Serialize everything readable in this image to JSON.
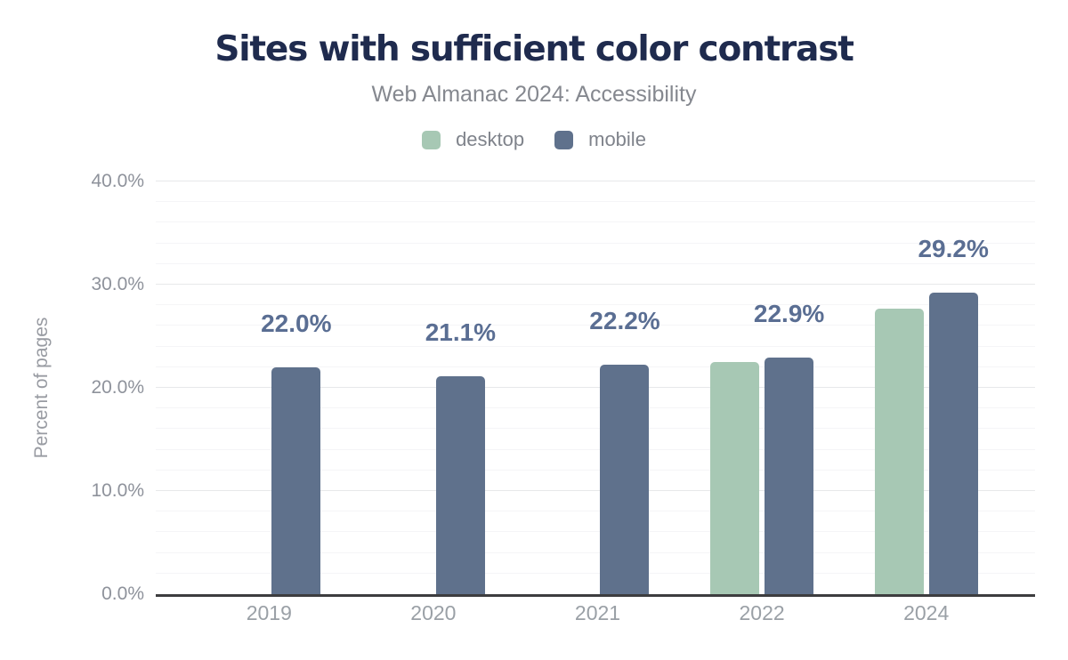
{
  "title": "Sites with sufficient color contrast",
  "subtitle": "Web Almanac 2024: Accessibility",
  "legend": [
    {
      "label": "desktop",
      "color": "#a7c8b4"
    },
    {
      "label": "mobile",
      "color": "#5f718c"
    }
  ],
  "colors": {
    "title": "#1f2b4e",
    "subtitle_text": "#85888f",
    "axis_line": "#3d3d3f",
    "grid_major": "#e7e8ea",
    "grid_minor": "#f5f5f7",
    "tick_text": "#8e929b",
    "data_label": "#5a6e93",
    "desktop_bar": "#a7c8b4",
    "mobile_bar": "#5f718c"
  },
  "chart_data": {
    "type": "bar",
    "categories": [
      "2019",
      "2020",
      "2021",
      "2022",
      "2024"
    ],
    "series": [
      {
        "name": "desktop",
        "color": "#a7c8b4",
        "values": [
          null,
          null,
          null,
          22.5,
          27.7
        ]
      },
      {
        "name": "mobile",
        "color": "#5f718c",
        "values": [
          22.0,
          21.1,
          22.2,
          22.9,
          29.2
        ]
      }
    ],
    "data_labels": [
      "22.0%",
      "21.1%",
      "22.2%",
      "22.9%",
      "29.2%"
    ],
    "title": "Sites with sufficient color contrast",
    "subtitle": "Web Almanac 2024: Accessibility",
    "xlabel": "",
    "ylabel": "Percent of pages",
    "ylim": [
      0,
      40
    ],
    "yticks": [
      "0.0%",
      "10.0%",
      "20.0%",
      "30.0%",
      "40.0%"
    ],
    "ytick_values": [
      0,
      10,
      20,
      30,
      40
    ],
    "minor_grid_step": 2,
    "grid": true,
    "legend_position": "top"
  }
}
